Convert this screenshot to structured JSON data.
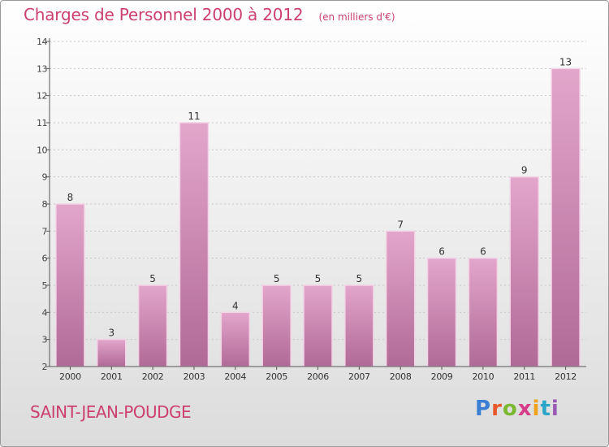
{
  "header": {
    "title": "Charges de Personnel 2000 à 2012",
    "subtitle": "(en milliers d'€)"
  },
  "footer": {
    "commune": "SAINT-JEAN-POUDGE",
    "brand": "Proxiti"
  },
  "brand_colors": [
    "#3b7fd4",
    "#e8572a",
    "#7ab830",
    "#d63c8a",
    "#f0a21c",
    "#2aa6c9",
    "#9b59b6"
  ],
  "colors": {
    "bar_top": "#e3a6cb",
    "bar_bottom": "#b06a96",
    "bar_edge": "#f3d3e6",
    "accent": "#cc3f6e",
    "grid": "#c8c8c8",
    "axis": "#555555"
  },
  "chart_data": {
    "type": "bar",
    "title": "Charges de Personnel 2000 à 2012",
    "subtitle": "(en milliers d'€)",
    "categories": [
      "2000",
      "2001",
      "2002",
      "2003",
      "2004",
      "2005",
      "2006",
      "2007",
      "2008",
      "2009",
      "2010",
      "2011",
      "2012"
    ],
    "values": [
      8,
      3,
      5,
      11,
      4,
      5,
      5,
      5,
      7,
      6,
      6,
      9,
      13
    ],
    "ylim": [
      2,
      14
    ],
    "yticks": [
      2,
      3,
      4,
      5,
      6,
      7,
      8,
      9,
      10,
      11,
      12,
      13,
      14
    ],
    "grid": true,
    "xlabel": "",
    "ylabel": ""
  }
}
